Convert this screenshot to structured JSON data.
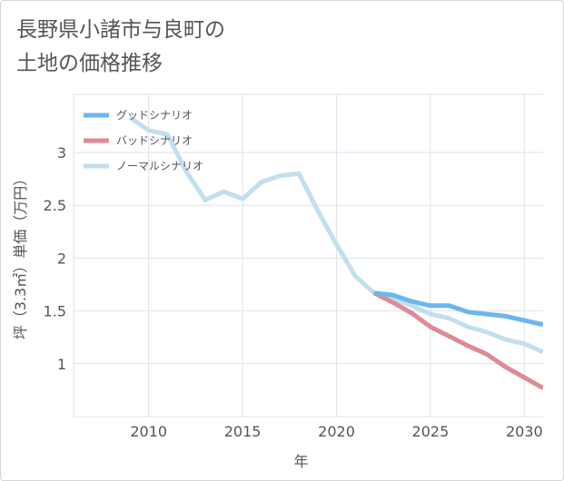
{
  "title": "長野県小諸市与良町の\n土地の価格推移",
  "chart_data": {
    "type": "line",
    "xlabel": "年",
    "ylabel": "坪（3.3㎡）単価（万円）",
    "xlim": [
      2006,
      2031
    ],
    "ylim": [
      0.5,
      3.55
    ],
    "xticks": [
      2010,
      2015,
      2020,
      2025,
      2030
    ],
    "yticks": [
      {
        "value": 1,
        "label": "1"
      },
      {
        "value": 1.5,
        "label": "1.5"
      },
      {
        "value": 2,
        "label": "2"
      },
      {
        "value": 2.5,
        "label": "2.5"
      },
      {
        "value": 3,
        "label": "3"
      }
    ],
    "grid": true,
    "legend_position": "top-left",
    "series": [
      {
        "name": "グッドシナリオ",
        "color": "#6cb6ee",
        "x": [
          2022,
          2023,
          2024,
          2025,
          2026,
          2027,
          2028,
          2029,
          2030,
          2031
        ],
        "y": [
          1.67,
          1.65,
          1.59,
          1.55,
          1.55,
          1.49,
          1.47,
          1.45,
          1.41,
          1.37
        ]
      },
      {
        "name": "バッドシナリオ",
        "color": "#de8a96",
        "x": [
          2022,
          2023,
          2024,
          2025,
          2026,
          2027,
          2028,
          2029,
          2030,
          2031
        ],
        "y": [
          1.67,
          1.58,
          1.48,
          1.35,
          1.26,
          1.17,
          1.09,
          0.97,
          0.87,
          0.77
        ]
      },
      {
        "name": "ノーマルシナリオ",
        "color": "#c1dfee",
        "x": [
          2009,
          2010,
          2011,
          2012,
          2013,
          2014,
          2015,
          2016,
          2017,
          2018,
          2019,
          2020,
          2021,
          2022,
          2023,
          2024,
          2025,
          2026,
          2027,
          2028,
          2029,
          2030,
          2031
        ],
        "y": [
          3.33,
          3.21,
          3.17,
          2.82,
          2.55,
          2.63,
          2.56,
          2.72,
          2.78,
          2.8,
          2.45,
          2.13,
          1.83,
          1.67,
          1.61,
          1.55,
          1.47,
          1.43,
          1.35,
          1.3,
          1.23,
          1.19,
          1.11
        ]
      }
    ]
  }
}
